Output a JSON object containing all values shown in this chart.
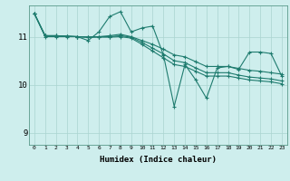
{
  "xlabel": "Humidex (Indice chaleur)",
  "ylabel": "",
  "background_color": "#ceeeed",
  "line_color": "#1e7b6e",
  "grid_color": "#aad4d0",
  "xlim": [
    -0.5,
    23.5
  ],
  "ylim": [
    8.75,
    11.65
  ],
  "yticks": [
    9,
    10,
    11
  ],
  "xticks": [
    0,
    1,
    2,
    3,
    4,
    5,
    6,
    7,
    8,
    9,
    10,
    11,
    12,
    13,
    14,
    15,
    16,
    17,
    18,
    19,
    20,
    21,
    22,
    23
  ],
  "series": [
    {
      "x": [
        0,
        1,
        2,
        3,
        4,
        5,
        6,
        7,
        8,
        9,
        10,
        11,
        12,
        13,
        14,
        15,
        16,
        17,
        18,
        19,
        20,
        21,
        22,
        23
      ],
      "y": [
        11.48,
        11.0,
        11.0,
        11.0,
        11.0,
        10.92,
        11.1,
        11.42,
        11.52,
        11.1,
        11.18,
        11.22,
        10.62,
        9.55,
        10.42,
        10.1,
        9.72,
        10.35,
        10.38,
        10.32,
        10.68,
        10.68,
        10.65,
        10.18
      ]
    },
    {
      "x": [
        0,
        1,
        2,
        3,
        4,
        5,
        6,
        7,
        8,
        9,
        10,
        11,
        12,
        13,
        14,
        15,
        16,
        17,
        18,
        19,
        20,
        21,
        22,
        23
      ],
      "y": [
        11.48,
        11.02,
        11.02,
        11.01,
        11.0,
        10.99,
        11.0,
        11.02,
        11.05,
        11.0,
        10.92,
        10.84,
        10.74,
        10.62,
        10.58,
        10.48,
        10.38,
        10.38,
        10.38,
        10.34,
        10.3,
        10.28,
        10.25,
        10.22
      ]
    },
    {
      "x": [
        0,
        1,
        2,
        3,
        4,
        5,
        6,
        7,
        8,
        9,
        10,
        11,
        12,
        13,
        14,
        15,
        16,
        17,
        18,
        19,
        20,
        21,
        22,
        23
      ],
      "y": [
        11.48,
        11.02,
        11.02,
        11.01,
        11.0,
        10.99,
        11.0,
        11.0,
        11.02,
        10.99,
        10.88,
        10.76,
        10.64,
        10.5,
        10.46,
        10.35,
        10.25,
        10.25,
        10.25,
        10.2,
        10.16,
        10.14,
        10.12,
        10.08
      ]
    },
    {
      "x": [
        0,
        1,
        2,
        3,
        4,
        5,
        6,
        7,
        8,
        9,
        10,
        11,
        12,
        13,
        14,
        15,
        16,
        17,
        18,
        19,
        20,
        21,
        22,
        23
      ],
      "y": [
        11.48,
        11.02,
        11.02,
        11.01,
        11.0,
        10.99,
        10.99,
        10.99,
        11.0,
        10.97,
        10.84,
        10.7,
        10.56,
        10.42,
        10.38,
        10.28,
        10.18,
        10.18,
        10.18,
        10.14,
        10.1,
        10.08,
        10.06,
        10.02
      ]
    }
  ]
}
